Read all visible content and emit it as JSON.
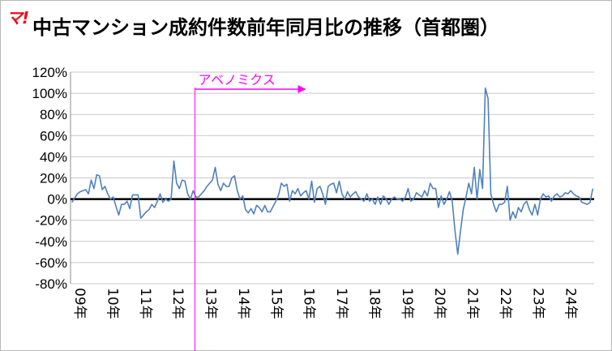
{
  "logo_text": "マ!",
  "chart_data": {
    "type": "line",
    "title": "中古マンション成約件数前年同月比の推移（首都圏）",
    "ylim": [
      -80,
      120
    ],
    "y_ticks": [
      "120%",
      "100%",
      "80%",
      "60%",
      "40%",
      "20%",
      "0%",
      "-20%",
      "-40%",
      "-60%",
      "-80%"
    ],
    "x_labels": [
      "09年",
      "10年",
      "11年",
      "12年",
      "13年",
      "14年",
      "15年",
      "16年",
      "17年",
      "18年",
      "19年",
      "20年",
      "21年",
      "22年",
      "23年",
      "24年"
    ],
    "grid": "horizontal",
    "legend": "none",
    "series_color": "#4f81bd",
    "annotation": {
      "text": "アベノミクス",
      "color": "#ff00ff",
      "year_index": 4
    },
    "series": [
      {
        "values": [
          -3,
          1,
          5,
          7,
          8,
          9,
          5,
          18,
          10,
          23,
          22,
          9,
          12,
          5,
          0,
          2,
          -7,
          -15,
          -5,
          -5,
          -2,
          -9,
          4,
          4,
          4,
          -18,
          -15,
          -12,
          -10,
          -5,
          -8,
          -2,
          5,
          -3,
          0,
          -2,
          0,
          36,
          15,
          10,
          18,
          17,
          5,
          0,
          8,
          2,
          2,
          5,
          8,
          12,
          15,
          18,
          30,
          14,
          8,
          15,
          12,
          12,
          20,
          22,
          8,
          0,
          3,
          -10,
          -13,
          -9,
          -14,
          -6,
          -8,
          -12,
          -6,
          -12,
          -12,
          -7,
          -2,
          4,
          15,
          12,
          14,
          -2,
          8,
          5,
          10,
          3,
          6,
          8,
          0,
          17,
          -3,
          10,
          12,
          5,
          -5,
          12,
          14,
          15,
          6,
          17,
          5,
          0,
          7,
          2,
          5,
          7,
          2,
          0,
          -2,
          5,
          -2,
          0,
          -5,
          2,
          -5,
          3,
          0,
          -5,
          0,
          2,
          0,
          0,
          -2,
          2,
          10,
          -2,
          0,
          6,
          4,
          2,
          8,
          3,
          15,
          10,
          10,
          -8,
          3,
          -5,
          0,
          7,
          -2,
          -30,
          -52,
          -30,
          -10,
          2,
          15,
          5,
          30,
          0,
          28,
          10,
          105,
          95,
          5,
          -5,
          -12,
          -5,
          -5,
          -3,
          12,
          -20,
          -12,
          -18,
          -8,
          -12,
          -5,
          -2,
          -10,
          -15,
          -5,
          -15,
          0,
          5,
          2,
          3,
          -2,
          3,
          5,
          2,
          3,
          6,
          5,
          8,
          5,
          3,
          2,
          -3,
          -4,
          -5,
          -3,
          10
        ]
      }
    ]
  }
}
